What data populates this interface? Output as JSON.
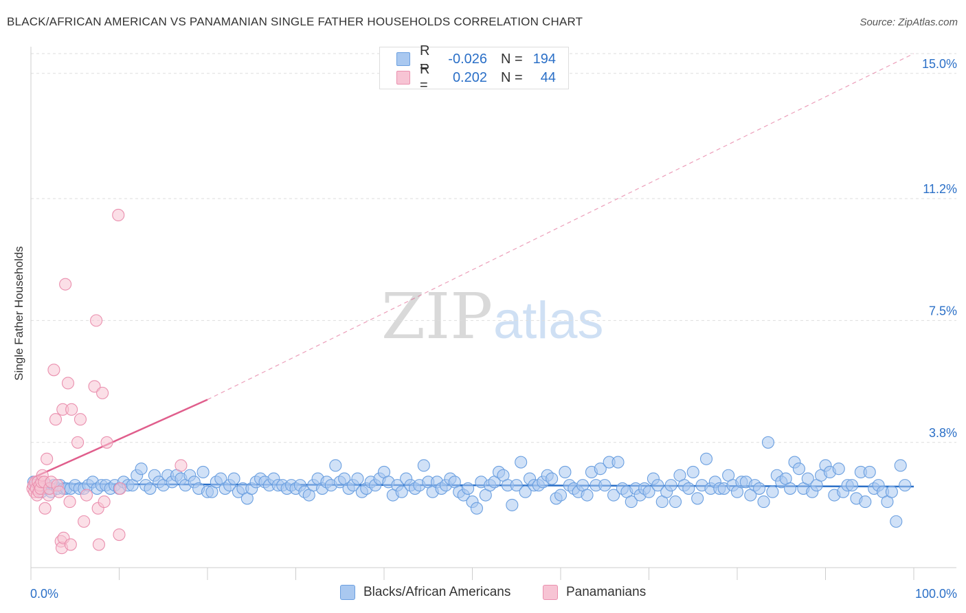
{
  "header": {
    "title": "BLACK/AFRICAN AMERICAN VS PANAMANIAN SINGLE FATHER HOUSEHOLDS CORRELATION CHART",
    "source": "Source: ZipAtlas.com"
  },
  "legend": {
    "rows": [
      {
        "r_label": "R =",
        "r_value": "-0.026",
        "n_label": "N =",
        "n_value": "194"
      },
      {
        "r_label": "R =",
        "r_value": "0.202",
        "n_label": "N =",
        "n_value": "44"
      }
    ]
  },
  "watermark": {
    "zip": "ZIP",
    "atlas": "atlas"
  },
  "colors": {
    "blue_fill": "#a9c8f0",
    "blue_stroke": "#6a9fe0",
    "blue_line": "#2a6fc7",
    "pink_fill": "#f7c4d4",
    "pink_stroke": "#ea8fae",
    "pink_line": "#e05e8c",
    "axis_label": "#2a6fc7",
    "grid": "#dddddd"
  },
  "chart_data": {
    "type": "scatter",
    "title": "BLACK/AFRICAN AMERICAN VS PANAMANIAN SINGLE FATHER HOUSEHOLDS CORRELATION CHART",
    "xlabel": "",
    "ylabel": "Single Father Households",
    "xlim": [
      0,
      100
    ],
    "ylim": [
      0,
      15.6
    ],
    "x_tick_labels": [
      "0.0%",
      "100.0%"
    ],
    "y_ticks": [
      3.8,
      7.5,
      11.2,
      15.0
    ],
    "y_tick_labels": [
      "3.8%",
      "7.5%",
      "11.2%",
      "15.0%"
    ],
    "grid": true,
    "legend_position": "bottom",
    "series": [
      {
        "name": "Blacks/African Americans",
        "color": "#a9c8f0",
        "trend": {
          "x0": 0,
          "y0": 2.54,
          "x1": 100,
          "y1": 2.46,
          "style": "solid"
        },
        "points": [
          [
            0.3,
            2.6
          ],
          [
            0.5,
            2.5
          ],
          [
            0.8,
            2.4
          ],
          [
            1.0,
            2.5
          ],
          [
            1.2,
            2.3
          ],
          [
            1.5,
            2.4
          ],
          [
            1.8,
            2.5
          ],
          [
            2.0,
            2.4
          ],
          [
            2.3,
            2.3
          ],
          [
            2.6,
            2.5
          ],
          [
            3.0,
            2.4
          ],
          [
            3.3,
            2.5
          ],
          [
            3.7,
            2.4
          ],
          [
            4.0,
            2.4
          ],
          [
            4.5,
            2.4
          ],
          [
            5.0,
            2.5
          ],
          [
            5.5,
            2.4
          ],
          [
            6.0,
            2.4
          ],
          [
            6.5,
            2.5
          ],
          [
            7.0,
            2.6
          ],
          [
            7.5,
            2.4
          ],
          [
            8.0,
            2.5
          ],
          [
            8.5,
            2.5
          ],
          [
            9.0,
            2.4
          ],
          [
            9.5,
            2.5
          ],
          [
            10.0,
            2.4
          ],
          [
            10.5,
            2.6
          ],
          [
            11.0,
            2.5
          ],
          [
            11.5,
            2.5
          ],
          [
            12.0,
            2.8
          ],
          [
            12.5,
            3.0
          ],
          [
            13.0,
            2.5
          ],
          [
            13.5,
            2.4
          ],
          [
            14.0,
            2.8
          ],
          [
            14.5,
            2.6
          ],
          [
            15.0,
            2.5
          ],
          [
            15.5,
            2.8
          ],
          [
            16.0,
            2.6
          ],
          [
            16.5,
            2.8
          ],
          [
            17.0,
            2.7
          ],
          [
            17.5,
            2.5
          ],
          [
            18.0,
            2.8
          ],
          [
            18.5,
            2.6
          ],
          [
            19.0,
            2.4
          ],
          [
            19.5,
            2.9
          ],
          [
            20.0,
            2.3
          ],
          [
            20.5,
            2.3
          ],
          [
            21.0,
            2.6
          ],
          [
            21.5,
            2.7
          ],
          [
            22.0,
            2.4
          ],
          [
            22.5,
            2.5
          ],
          [
            23.0,
            2.7
          ],
          [
            23.5,
            2.3
          ],
          [
            24.0,
            2.4
          ],
          [
            24.5,
            2.1
          ],
          [
            25.0,
            2.4
          ],
          [
            25.5,
            2.6
          ],
          [
            26.0,
            2.7
          ],
          [
            26.5,
            2.6
          ],
          [
            27.0,
            2.5
          ],
          [
            27.5,
            2.7
          ],
          [
            28.0,
            2.5
          ],
          [
            28.5,
            2.5
          ],
          [
            29.0,
            2.4
          ],
          [
            29.5,
            2.5
          ],
          [
            30.0,
            2.4
          ],
          [
            30.5,
            2.5
          ],
          [
            31.0,
            2.3
          ],
          [
            31.5,
            2.2
          ],
          [
            32.0,
            2.5
          ],
          [
            32.5,
            2.7
          ],
          [
            33.0,
            2.4
          ],
          [
            33.5,
            2.6
          ],
          [
            34.0,
            2.5
          ],
          [
            34.5,
            3.1
          ],
          [
            35.0,
            2.6
          ],
          [
            35.5,
            2.7
          ],
          [
            36.0,
            2.4
          ],
          [
            36.5,
            2.5
          ],
          [
            37.0,
            2.7
          ],
          [
            37.5,
            2.3
          ],
          [
            38.0,
            2.4
          ],
          [
            38.5,
            2.6
          ],
          [
            39.0,
            2.5
          ],
          [
            39.5,
            2.7
          ],
          [
            40.0,
            2.9
          ],
          [
            40.5,
            2.6
          ],
          [
            41.0,
            2.2
          ],
          [
            41.5,
            2.5
          ],
          [
            42.0,
            2.3
          ],
          [
            42.5,
            2.7
          ],
          [
            43.0,
            2.5
          ],
          [
            43.5,
            2.4
          ],
          [
            44.0,
            2.5
          ],
          [
            44.5,
            3.1
          ],
          [
            45.0,
            2.6
          ],
          [
            45.5,
            2.3
          ],
          [
            46.0,
            2.6
          ],
          [
            46.5,
            2.4
          ],
          [
            47.0,
            2.5
          ],
          [
            47.5,
            2.7
          ],
          [
            48.0,
            2.6
          ],
          [
            48.5,
            2.3
          ],
          [
            49.0,
            2.2
          ],
          [
            49.5,
            2.4
          ],
          [
            50.0,
            2.0
          ],
          [
            50.5,
            1.8
          ],
          [
            51.0,
            2.6
          ],
          [
            51.5,
            2.2
          ],
          [
            52.0,
            2.5
          ],
          [
            52.5,
            2.6
          ],
          [
            53.0,
            2.9
          ],
          [
            53.5,
            2.8
          ],
          [
            54.0,
            2.5
          ],
          [
            54.5,
            1.9
          ],
          [
            55.0,
            2.5
          ],
          [
            55.5,
            3.2
          ],
          [
            56.0,
            2.3
          ],
          [
            56.5,
            2.7
          ],
          [
            57.0,
            2.5
          ],
          [
            57.5,
            2.5
          ],
          [
            58.0,
            2.6
          ],
          [
            58.5,
            2.8
          ],
          [
            59.0,
            2.7
          ],
          [
            59.5,
            2.1
          ],
          [
            60.0,
            2.2
          ],
          [
            60.5,
            2.9
          ],
          [
            61.0,
            2.5
          ],
          [
            61.5,
            2.4
          ],
          [
            62.0,
            2.3
          ],
          [
            62.5,
            2.5
          ],
          [
            63.0,
            2.2
          ],
          [
            63.5,
            2.9
          ],
          [
            64.0,
            2.5
          ],
          [
            64.5,
            3.0
          ],
          [
            65.0,
            2.5
          ],
          [
            65.5,
            3.2
          ],
          [
            66.0,
            2.2
          ],
          [
            66.5,
            3.2
          ],
          [
            67.0,
            2.4
          ],
          [
            67.5,
            2.3
          ],
          [
            68.0,
            2.0
          ],
          [
            68.5,
            2.4
          ],
          [
            69.0,
            2.2
          ],
          [
            69.5,
            2.4
          ],
          [
            70.0,
            2.3
          ],
          [
            70.5,
            2.7
          ],
          [
            71.0,
            2.5
          ],
          [
            71.5,
            2.0
          ],
          [
            72.0,
            2.3
          ],
          [
            72.5,
            2.5
          ],
          [
            73.0,
            2.0
          ],
          [
            73.5,
            2.8
          ],
          [
            74.0,
            2.5
          ],
          [
            74.5,
            2.4
          ],
          [
            75.0,
            2.9
          ],
          [
            75.5,
            2.1
          ],
          [
            76.0,
            2.5
          ],
          [
            76.5,
            3.3
          ],
          [
            77.0,
            2.4
          ],
          [
            77.5,
            2.6
          ],
          [
            78.0,
            2.4
          ],
          [
            78.5,
            2.4
          ],
          [
            79.0,
            2.8
          ],
          [
            79.5,
            2.5
          ],
          [
            80.0,
            2.3
          ],
          [
            80.5,
            2.6
          ],
          [
            81.0,
            2.6
          ],
          [
            81.5,
            2.2
          ],
          [
            82.0,
            2.5
          ],
          [
            82.5,
            2.4
          ],
          [
            83.0,
            2.0
          ],
          [
            83.5,
            3.8
          ],
          [
            84.0,
            2.3
          ],
          [
            84.5,
            2.8
          ],
          [
            85.0,
            2.6
          ],
          [
            85.5,
            2.7
          ],
          [
            86.0,
            2.4
          ],
          [
            86.5,
            3.2
          ],
          [
            87.0,
            3.0
          ],
          [
            87.5,
            2.4
          ],
          [
            88.0,
            2.7
          ],
          [
            88.5,
            2.3
          ],
          [
            89.0,
            2.5
          ],
          [
            89.5,
            2.8
          ],
          [
            90.0,
            3.1
          ],
          [
            90.5,
            2.9
          ],
          [
            91.0,
            2.2
          ],
          [
            91.5,
            3.0
          ],
          [
            92.0,
            2.3
          ],
          [
            92.5,
            2.5
          ],
          [
            93.0,
            2.5
          ],
          [
            93.5,
            2.1
          ],
          [
            94.0,
            2.9
          ],
          [
            94.5,
            2.0
          ],
          [
            95.0,
            2.9
          ],
          [
            95.5,
            2.4
          ],
          [
            96.0,
            2.5
          ],
          [
            96.5,
            2.3
          ],
          [
            97.0,
            2.0
          ],
          [
            97.5,
            2.3
          ],
          [
            98.0,
            1.4
          ],
          [
            98.5,
            3.1
          ],
          [
            99.0,
            2.5
          ]
        ]
      },
      {
        "name": "Panamanians",
        "color": "#f7c4d4",
        "trend": {
          "x0": 0,
          "y0": 2.7,
          "x1": 20,
          "y1": 5.1,
          "style": "solid",
          "extend_to": [
            100,
            15.6
          ],
          "extend_style": "dashed"
        },
        "points": [
          [
            0.2,
            2.4
          ],
          [
            0.3,
            2.5
          ],
          [
            0.4,
            2.3
          ],
          [
            0.5,
            2.6
          ],
          [
            0.6,
            2.4
          ],
          [
            0.7,
            2.2
          ],
          [
            0.8,
            2.6
          ],
          [
            0.9,
            2.3
          ],
          [
            1.0,
            2.5
          ],
          [
            1.1,
            2.4
          ],
          [
            1.2,
            2.6
          ],
          [
            1.3,
            2.8
          ],
          [
            1.5,
            2.6
          ],
          [
            1.6,
            1.8
          ],
          [
            1.8,
            3.3
          ],
          [
            2.0,
            2.2
          ],
          [
            2.1,
            2.4
          ],
          [
            2.3,
            2.6
          ],
          [
            2.6,
            6.0
          ],
          [
            2.8,
            4.5
          ],
          [
            3.0,
            2.5
          ],
          [
            3.2,
            2.3
          ],
          [
            3.4,
            0.8
          ],
          [
            3.5,
            0.6
          ],
          [
            3.6,
            4.8
          ],
          [
            3.7,
            0.9
          ],
          [
            3.9,
            8.6
          ],
          [
            4.2,
            5.6
          ],
          [
            4.4,
            2.0
          ],
          [
            4.5,
            0.7
          ],
          [
            4.6,
            4.8
          ],
          [
            5.3,
            3.8
          ],
          [
            5.6,
            4.5
          ],
          [
            6.0,
            1.4
          ],
          [
            6.3,
            2.2
          ],
          [
            7.2,
            5.5
          ],
          [
            7.4,
            7.5
          ],
          [
            7.6,
            1.8
          ],
          [
            7.7,
            0.7
          ],
          [
            8.1,
            5.3
          ],
          [
            8.3,
            2.0
          ],
          [
            8.6,
            3.8
          ],
          [
            9.9,
            10.7
          ],
          [
            10.0,
            1.0
          ],
          [
            10.1,
            2.4
          ],
          [
            17.0,
            3.1
          ]
        ]
      }
    ]
  },
  "bottom_legend": {
    "items": [
      {
        "label": "Blacks/African Americans"
      },
      {
        "label": "Panamanians"
      }
    ]
  }
}
